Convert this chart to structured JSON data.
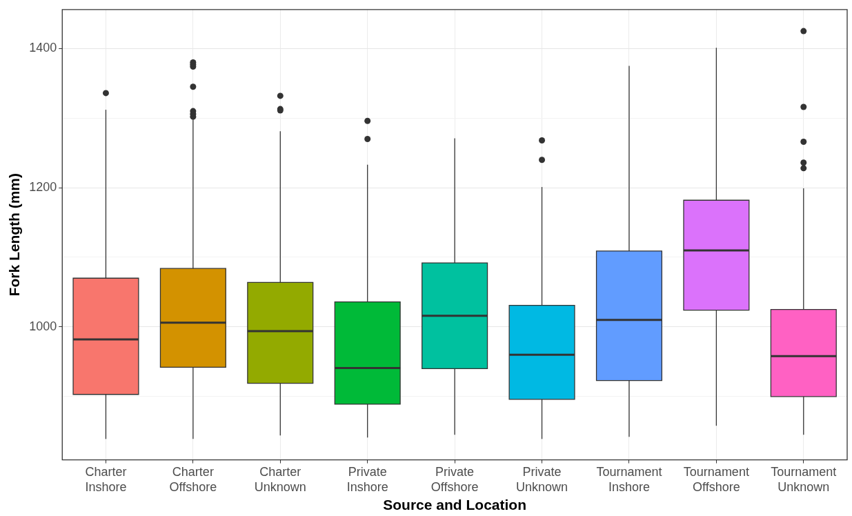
{
  "chart_data": {
    "type": "box",
    "xlabel": "Source and Location",
    "ylabel": "Fork Length (mm)",
    "categories": [
      "Charter Inshore",
      "Charter Offshore",
      "Charter Unknown",
      "Private Inshore",
      "Private Offshore",
      "Private Unknown",
      "Tournament Inshore",
      "Tournament Offshore",
      "Tournament Unknown"
    ],
    "colors": [
      "#f8766d",
      "#d39200",
      "#93aa00",
      "#00ba38",
      "#00c19f",
      "#00b9e3",
      "#619cff",
      "#db72fb",
      "#ff61c3"
    ],
    "boxes": [
      {
        "low": 839,
        "q1": 903,
        "median": 982,
        "q3": 1070,
        "high": 1312,
        "outliers": [
          1336
        ]
      },
      {
        "low": 839,
        "q1": 942,
        "median": 1006,
        "q3": 1084,
        "high": 1298,
        "outliers": [
          1380,
          1377,
          1374,
          1345,
          1310,
          1306,
          1302
        ]
      },
      {
        "low": 844,
        "q1": 919,
        "median": 994,
        "q3": 1064,
        "high": 1281,
        "outliers": [
          1332,
          1313,
          1311
        ]
      },
      {
        "low": 841,
        "q1": 889,
        "median": 941,
        "q3": 1036,
        "high": 1233,
        "outliers": [
          1296,
          1270
        ]
      },
      {
        "low": 845,
        "q1": 940,
        "median": 1016,
        "q3": 1092,
        "high": 1271
      },
      {
        "low": 839,
        "q1": 896,
        "median": 960,
        "q3": 1031,
        "high": 1201,
        "outliers": [
          1268,
          1240
        ]
      },
      {
        "low": 842,
        "q1": 923,
        "median": 1010,
        "q3": 1109,
        "high": 1375
      },
      {
        "low": 858,
        "q1": 1024,
        "median": 1110,
        "q3": 1182,
        "high": 1401
      },
      {
        "low": 845,
        "q1": 900,
        "median": 958,
        "q3": 1025,
        "high": 1199,
        "outliers": [
          1425,
          1316,
          1266,
          1236,
          1228
        ]
      }
    ],
    "ylim": [
      809,
      1456
    ],
    "yticks": [
      {
        "value": 900,
        "label": null
      },
      1000,
      {
        "value": 1100,
        "label": null
      },
      1200,
      {
        "value": 1300,
        "label": null
      },
      1400
    ],
    "grid": true
  }
}
